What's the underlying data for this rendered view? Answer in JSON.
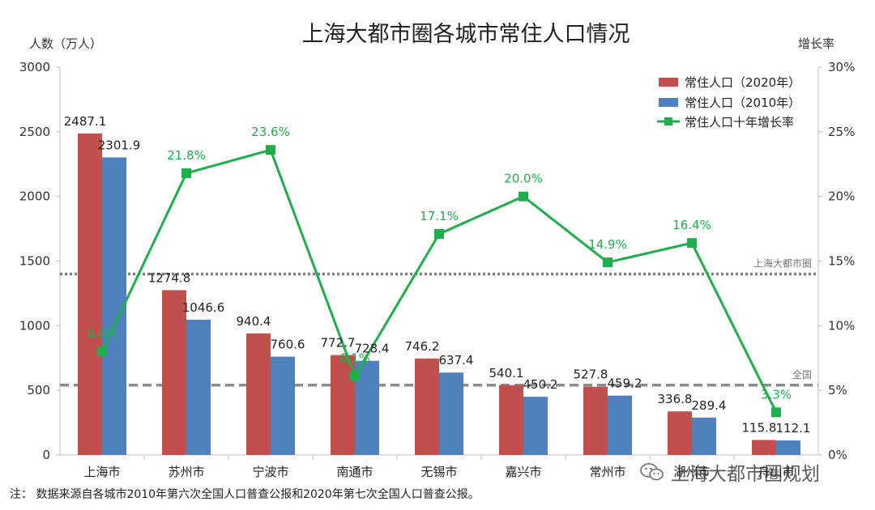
{
  "chart_data": {
    "type": "bar",
    "title": "上海大都市圈各城市常住人口情况",
    "ylabel": "人数（万人）",
    "y2label": "增长率",
    "ylim": [
      0,
      3000
    ],
    "y2lim": [
      0,
      30
    ],
    "yticks": [
      "0",
      "500",
      "1000",
      "1500",
      "2000",
      "2500",
      "3000"
    ],
    "y2ticks": [
      "0%",
      "5%",
      "10%",
      "15%",
      "20%",
      "25%",
      "30%"
    ],
    "categories": [
      "上海市",
      "苏州市",
      "宁波市",
      "南通市",
      "无锡市",
      "嘉兴市",
      "常州市",
      "湖州市",
      "舟山市"
    ],
    "series": [
      {
        "name": "常住人口（2020年）",
        "kind": "bar",
        "color": "#c0504d",
        "values": [
          2487.1,
          1274.8,
          940.4,
          772.7,
          746.2,
          540.1,
          527.8,
          336.8,
          115.8
        ],
        "labels": [
          "2487.1",
          "1274.8",
          "940.4",
          "772.7",
          "746.2",
          "540.1",
          "527.8",
          "336.8",
          "115.8"
        ]
      },
      {
        "name": "常住人口（2010年）",
        "kind": "bar",
        "color": "#4f81bd",
        "values": [
          2301.9,
          1046.6,
          760.6,
          728.4,
          637.4,
          450.2,
          459.2,
          289.4,
          112.1
        ],
        "labels": [
          "2301.9",
          "1046.6",
          "760.6",
          "728.4",
          "637.4",
          "450.2",
          "459.2",
          "289.4",
          "112.1"
        ]
      },
      {
        "name": "常住人口十年增长率",
        "kind": "line",
        "axis": "right",
        "color": "#1fae4b",
        "values": [
          8.0,
          21.8,
          23.6,
          6.1,
          17.1,
          20.0,
          14.9,
          16.4,
          3.3
        ],
        "labels": [
          "8.0%",
          "21.8%",
          "23.6%",
          "6.1%",
          "17.1%",
          "20.0%",
          "14.9%",
          "16.4%",
          "3.3%"
        ]
      }
    ],
    "reference_lines": [
      {
        "label": "上海大都市圈",
        "value": 14.0,
        "axis": "right",
        "style": "dotted",
        "color": "#7f7f7f"
      },
      {
        "label": "全国",
        "value": 5.4,
        "axis": "right",
        "style": "dashed",
        "color": "#8c8c8c"
      }
    ],
    "legend_position": "top-right",
    "grid": false
  },
  "note": "注：  数据来源自各城市2010年第六次全国人口普查公报和2020年第七次全国人口普查公报。",
  "watermark": "上海大都市圈规划"
}
